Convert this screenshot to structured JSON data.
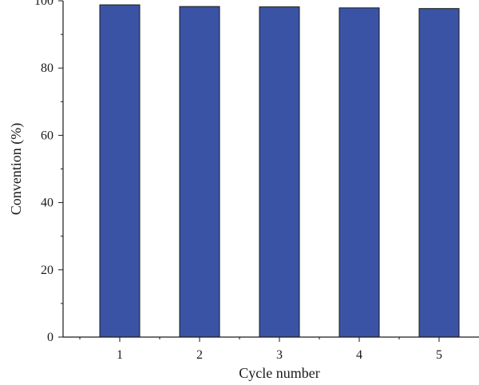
{
  "chart_data": {
    "type": "bar",
    "categories": [
      "1",
      "2",
      "3",
      "4",
      "5"
    ],
    "values": [
      98.8,
      98.3,
      98.2,
      97.9,
      97.7
    ],
    "xlabel": "Cycle number",
    "ylabel": "Convention (%)",
    "ylim": [
      0,
      100
    ],
    "yticks": [
      0,
      20,
      40,
      60,
      80,
      100
    ],
    "grid": false,
    "bar_color": "#3a53a4",
    "bar_edge_color": "#1a1a1a"
  }
}
